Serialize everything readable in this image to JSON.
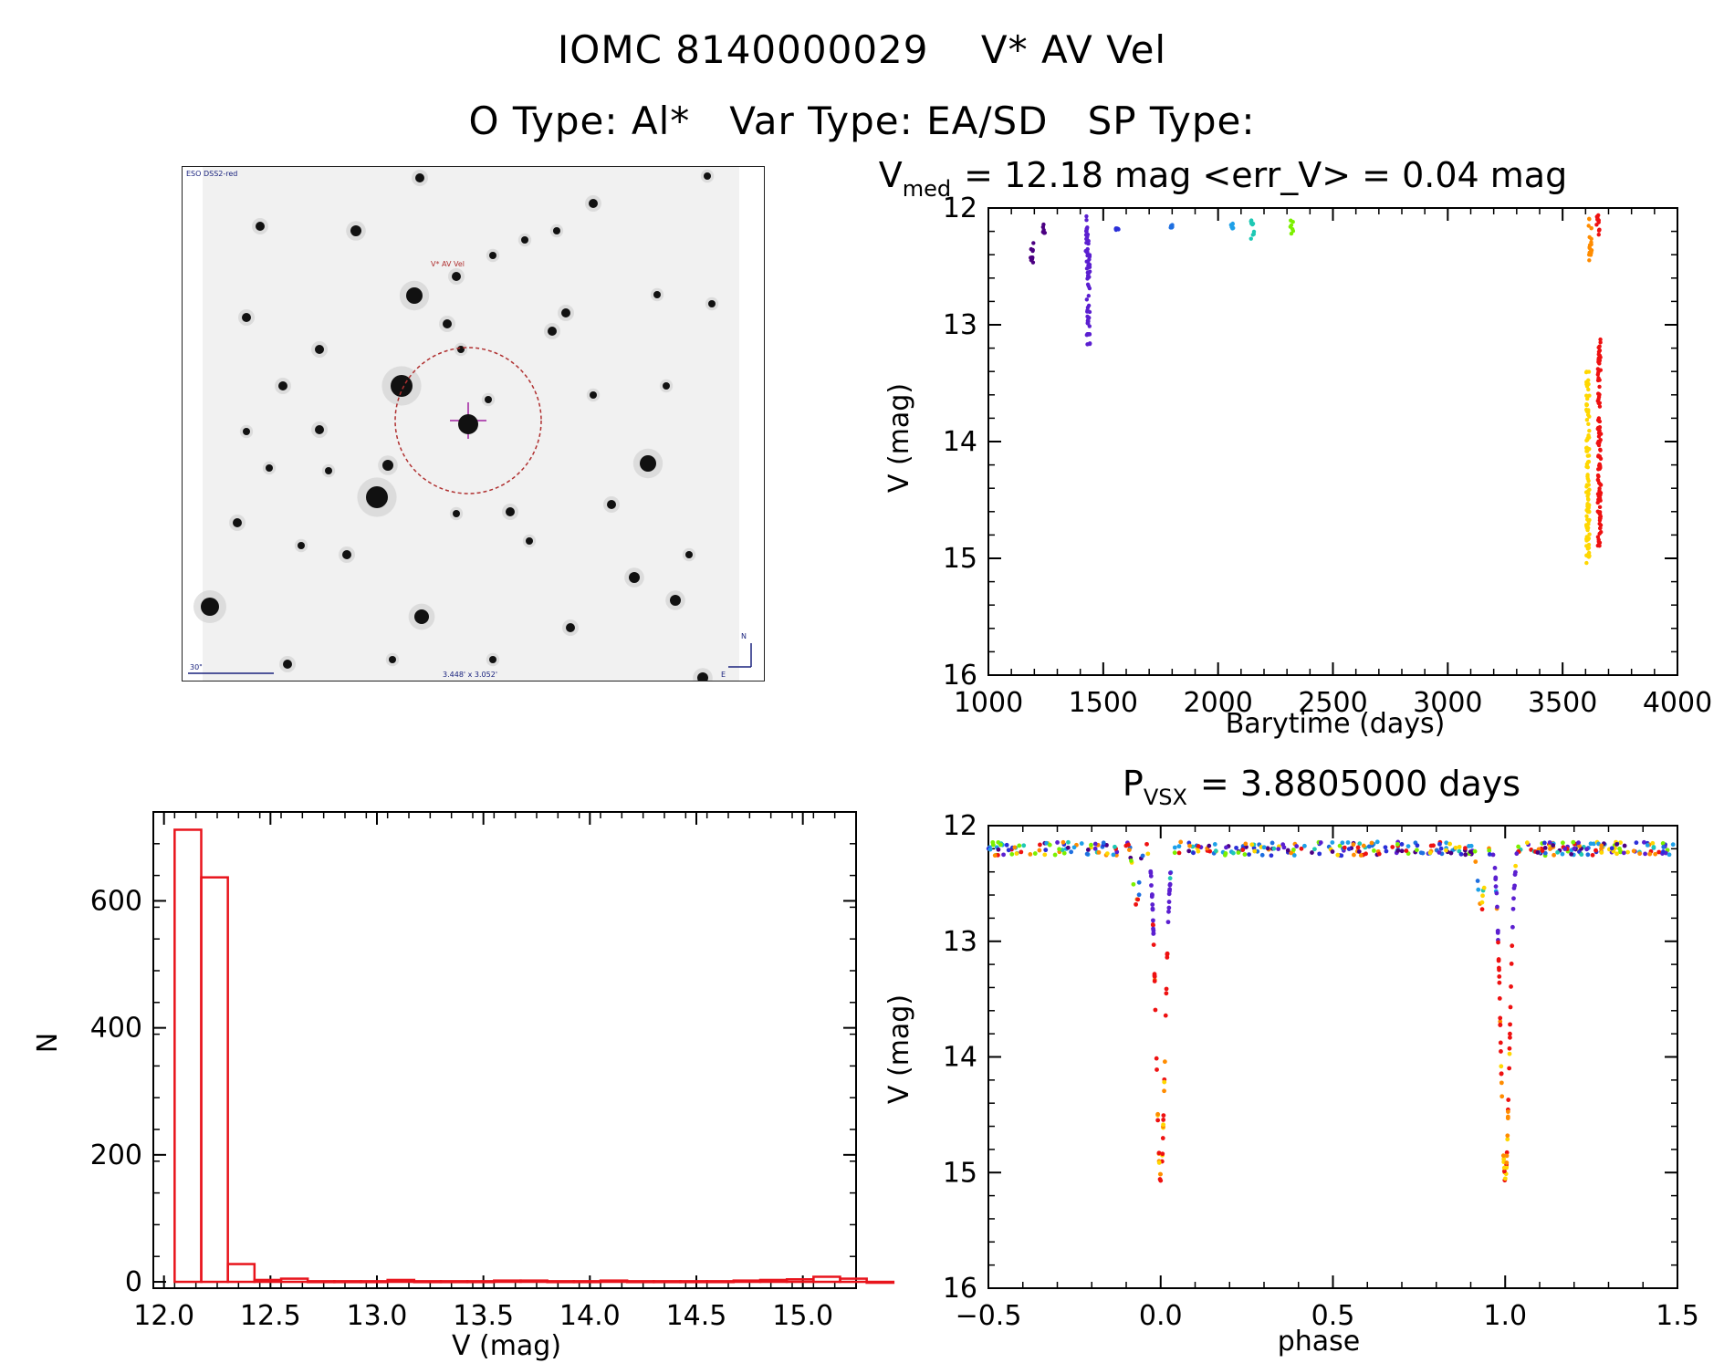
{
  "header": {
    "line1_id": "IOMC 8140000029",
    "line1_name": "V* AV Vel",
    "line2_otype": "O Type: Al*",
    "line2_vartype": "Var Type: EA/SD",
    "line2_sptype": "SP Type:"
  },
  "finder": {
    "survey_label": "ESO DSS2-red",
    "target_label": "V* AV Vel",
    "scale_label": "30\"",
    "size_label": "3.448' x 3.052'",
    "north_label": "N",
    "east_label": "E"
  },
  "colors": {
    "histogram": "#e8141c",
    "axes": "#000000",
    "circle": "#b03030"
  },
  "chart_data": [
    {
      "id": "lightcurve",
      "type": "scatter",
      "title": "V_med = 12.18 mag <err_V> = 0.04 mag",
      "title_parts": {
        "v": "V",
        "sub": "med",
        "rest": "= 12.18 mag <err_V> = 0.04 mag"
      },
      "xlabel": "Barytime (days)",
      "ylabel": "V (mag)",
      "xlim": [
        1000,
        4000
      ],
      "ylim": [
        16,
        12
      ],
      "xticks": [
        1000,
        1500,
        2000,
        2500,
        3000,
        3500,
        4000
      ],
      "yticks": [
        12,
        13,
        14,
        15,
        16
      ],
      "xtick_labels": [
        "1000",
        "1500",
        "2000",
        "2500",
        "3000",
        "3500",
        "4000"
      ],
      "ytick_labels": [
        "12",
        "13",
        "14",
        "15",
        "16"
      ],
      "groups": [
        {
          "x": 1190,
          "ymin": 12.3,
          "ymax": 12.48,
          "color": "#4b0082"
        },
        {
          "x": 1240,
          "ymin": 12.13,
          "ymax": 12.22,
          "color": "#4b0082"
        },
        {
          "x": 1430,
          "ymin": 12.05,
          "ymax": 12.4,
          "color": "#5b1fd0"
        },
        {
          "x": 1435,
          "ymin": 12.4,
          "ymax": 13.17,
          "color": "#5b1fd0"
        },
        {
          "x": 1560,
          "ymin": 12.16,
          "ymax": 12.19,
          "color": "#2a2fd8"
        },
        {
          "x": 1800,
          "ymin": 12.13,
          "ymax": 12.18,
          "color": "#1e6fe0"
        },
        {
          "x": 2060,
          "ymin": 12.13,
          "ymax": 12.18,
          "color": "#1ea0e8"
        },
        {
          "x": 2150,
          "ymin": 12.1,
          "ymax": 12.27,
          "color": "#1ec8b4"
        },
        {
          "x": 2320,
          "ymin": 12.1,
          "ymax": 12.22,
          "color": "#7cf000"
        },
        {
          "x": 3610,
          "ymin": 13.4,
          "ymax": 15.05,
          "color": "#ffd700"
        },
        {
          "x": 3620,
          "ymin": 12.08,
          "ymax": 12.45,
          "color": "#ff8c00"
        },
        {
          "x": 3660,
          "ymin": 13.1,
          "ymax": 14.9,
          "color": "#ee1111"
        },
        {
          "x": 3655,
          "ymin": 12.05,
          "ymax": 12.25,
          "color": "#ee1111"
        }
      ]
    },
    {
      "id": "histogram",
      "type": "bar",
      "xlabel": "V (mag)",
      "ylabel": "N",
      "xlim": [
        11.95,
        15.25
      ],
      "ylim": [
        -10,
        740
      ],
      "xticks": [
        12.0,
        12.5,
        13.0,
        13.5,
        14.0,
        14.5,
        15.0
      ],
      "yticks": [
        0,
        200,
        400,
        600
      ],
      "xtick_labels": [
        "12.0",
        "12.5",
        "13.0",
        "13.5",
        "14.0",
        "14.5",
        "15.0"
      ],
      "ytick_labels": [
        "0",
        "200",
        "400",
        "600"
      ],
      "bin_start": 12.05,
      "bin_width": 0.125,
      "values": [
        712,
        637,
        28,
        3,
        5,
        1,
        1,
        1,
        3,
        1,
        1,
        1,
        2,
        2,
        1,
        1,
        2,
        1,
        1,
        1,
        1,
        2,
        3,
        4,
        8,
        5,
        0
      ]
    },
    {
      "id": "phased",
      "type": "scatter",
      "title": "P_vsx = 3.8805000 days",
      "title_parts": {
        "v": "P",
        "sub": "VSX",
        "rest": "= 3.8805000 days"
      },
      "xlabel": "phase",
      "ylabel": "V (mag)",
      "xlim": [
        -0.5,
        1.5
      ],
      "ylim": [
        16,
        12
      ],
      "xticks": [
        -0.5,
        0.0,
        0.5,
        1.0,
        1.5
      ],
      "yticks": [
        12,
        13,
        14,
        15,
        16
      ],
      "xtick_labels": [
        "−0.5",
        "0.0",
        "0.5",
        "1.0",
        "1.5"
      ],
      "ytick_labels": [
        "12",
        "13",
        "14",
        "15",
        "16"
      ],
      "period_days": 3.8805,
      "primary_eclipse_phase": 0.0,
      "primary_eclipse_depth_mag": 15.05,
      "secondary_eclipse_phase": -0.07,
      "secondary_eclipse_depth_mag": 12.7,
      "baseline_mag": 12.2
    }
  ]
}
